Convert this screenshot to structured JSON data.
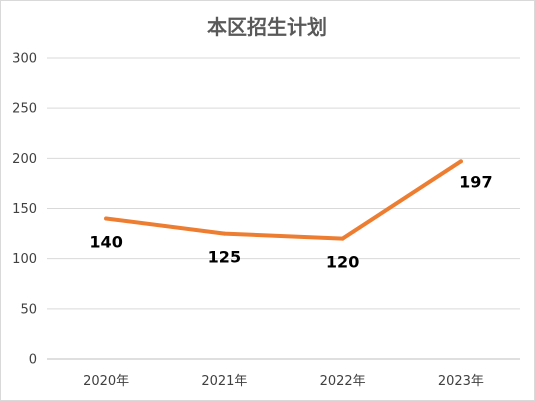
{
  "chart_data": {
    "type": "line",
    "title": "本区招生计划",
    "categories": [
      "2020年",
      "2021年",
      "2022年",
      "2023年"
    ],
    "values": [
      140,
      125,
      120,
      197
    ],
    "data_labels": [
      "140",
      "125",
      "120",
      "197"
    ],
    "ylim": [
      0,
      300
    ],
    "y_ticks": [
      "0",
      "50",
      "100",
      "150",
      "200",
      "250",
      "300"
    ],
    "grid": true,
    "line_color": "#ED7D31"
  }
}
